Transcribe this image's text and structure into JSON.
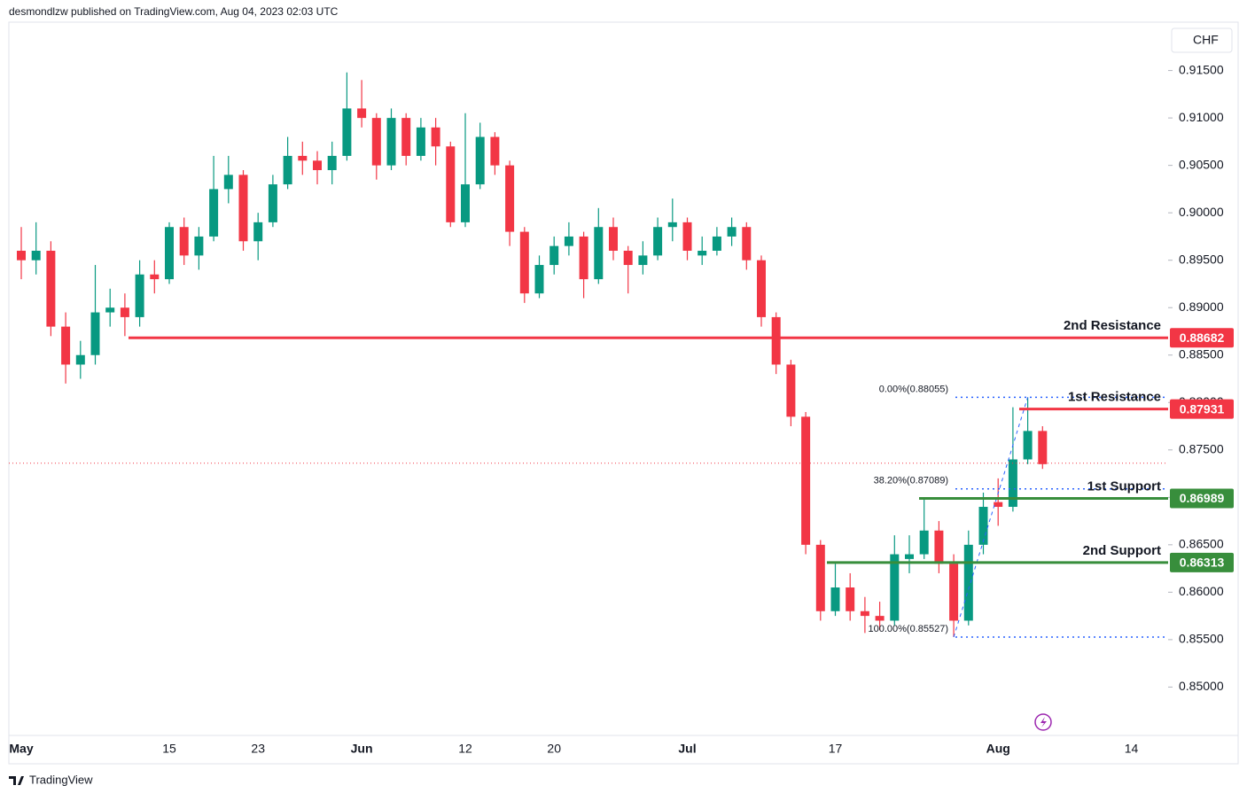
{
  "header": "desmondlzw published on TradingView.com, Aug 04, 2023 02:03 UTC",
  "currency": "CHF",
  "brand": "TradingView",
  "chart_data": {
    "type": "candlestick",
    "categories": [
      "May",
      null,
      null,
      null,
      null,
      null,
      null,
      null,
      null,
      null,
      "15",
      null,
      null,
      null,
      null,
      null,
      "23",
      null,
      null,
      null,
      null,
      null,
      null,
      "Jun",
      null,
      null,
      null,
      null,
      null,
      null,
      "12",
      null,
      null,
      null,
      null,
      null,
      "20",
      null,
      null,
      null,
      null,
      null,
      null,
      null,
      null,
      "Jul",
      null,
      null,
      null,
      null,
      null,
      null,
      null,
      null,
      null,
      "17",
      null,
      null,
      null,
      null,
      null,
      null,
      null,
      null,
      null,
      null,
      "Aug",
      null,
      null,
      null,
      null,
      null,
      null,
      null,
      null,
      "14"
    ],
    "open": [
      0.896,
      0.895,
      0.896,
      0.888,
      0.884,
      0.885,
      0.8895,
      0.89,
      0.889,
      0.8935,
      0.893,
      0.8985,
      0.8955,
      0.8975,
      0.9025,
      0.904,
      0.897,
      0.899,
      0.903,
      0.906,
      0.9055,
      0.9045,
      0.906,
      0.911,
      0.91,
      0.905,
      0.91,
      0.906,
      0.909,
      0.907,
      0.899,
      0.903,
      0.908,
      0.905,
      0.898,
      0.8915,
      0.8945,
      0.8965,
      0.8975,
      0.893,
      0.8985,
      0.896,
      0.8945,
      0.8955,
      0.8985,
      0.899,
      0.8955,
      0.896,
      0.8975,
      0.8985,
      0.895,
      0.889,
      0.884,
      0.8785,
      0.865,
      0.858,
      0.8605,
      0.858,
      0.8575,
      0.857,
      0.8635,
      0.864,
      0.8665,
      0.863,
      0.857,
      0.865,
      0.8695,
      0.869,
      0.874,
      0.877,
      null,
      null,
      null,
      null,
      null,
      null
    ],
    "high": [
      0.8985,
      0.899,
      0.897,
      0.8895,
      0.8865,
      0.8945,
      0.892,
      0.8915,
      0.895,
      0.895,
      0.899,
      0.8995,
      0.8985,
      0.906,
      0.906,
      0.9045,
      0.9,
      0.904,
      0.908,
      0.9075,
      0.9065,
      0.9075,
      0.9148,
      0.914,
      0.9105,
      0.911,
      0.9105,
      0.91,
      0.91,
      0.9075,
      0.9105,
      0.9095,
      0.9085,
      0.9055,
      0.8985,
      0.8955,
      0.8975,
      0.899,
      0.898,
      0.9005,
      0.8995,
      0.8965,
      0.897,
      0.8995,
      0.9015,
      0.8995,
      0.8975,
      0.8985,
      0.8995,
      0.899,
      0.8955,
      0.8895,
      0.8845,
      0.879,
      0.8655,
      0.863,
      0.862,
      0.8595,
      0.859,
      0.866,
      0.866,
      0.8699,
      0.8675,
      0.864,
      0.8665,
      0.8705,
      0.872,
      0.8795,
      0.88055,
      0.8775,
      null,
      null,
      null,
      null,
      null,
      null
    ],
    "low": [
      0.893,
      0.8935,
      0.887,
      0.882,
      0.8825,
      0.884,
      0.888,
      0.887,
      0.888,
      0.8915,
      0.8925,
      0.8945,
      0.894,
      0.897,
      0.901,
      0.896,
      0.895,
      0.8985,
      0.9025,
      0.904,
      0.903,
      0.903,
      0.9055,
      0.909,
      0.9035,
      0.9045,
      0.905,
      0.9055,
      0.905,
      0.8985,
      0.8985,
      0.9025,
      0.904,
      0.8965,
      0.8905,
      0.891,
      0.8935,
      0.8955,
      0.891,
      0.8925,
      0.895,
      0.8915,
      0.8935,
      0.895,
      0.897,
      0.895,
      0.8945,
      0.8955,
      0.8965,
      0.894,
      0.888,
      0.883,
      0.8775,
      0.864,
      0.857,
      0.8575,
      0.857,
      0.8557,
      0.856,
      0.8565,
      0.862,
      0.8635,
      0.862,
      0.85527,
      0.8565,
      0.864,
      0.867,
      0.8685,
      0.8735,
      0.873,
      null,
      null,
      null,
      null,
      null,
      null
    ],
    "close": [
      0.895,
      0.896,
      0.888,
      0.884,
      0.885,
      0.8895,
      0.89,
      0.889,
      0.8935,
      0.893,
      0.8985,
      0.8955,
      0.8975,
      0.9025,
      0.904,
      0.897,
      0.899,
      0.903,
      0.906,
      0.9055,
      0.9045,
      0.906,
      0.911,
      0.91,
      0.905,
      0.91,
      0.906,
      0.909,
      0.907,
      0.899,
      0.903,
      0.908,
      0.905,
      0.898,
      0.8915,
      0.8945,
      0.8965,
      0.8975,
      0.893,
      0.8985,
      0.896,
      0.8945,
      0.8955,
      0.8985,
      0.899,
      0.896,
      0.896,
      0.8975,
      0.8985,
      0.895,
      0.889,
      0.884,
      0.8785,
      0.865,
      0.858,
      0.8605,
      0.858,
      0.8575,
      0.857,
      0.864,
      0.864,
      0.8665,
      0.863,
      0.857,
      0.865,
      0.869,
      0.869,
      0.874,
      0.877,
      0.8735,
      null,
      null,
      null,
      null,
      null,
      null
    ],
    "up_color": "#089981",
    "down_color": "#f23645",
    "last_price": 0.8736,
    "ylim": [
      0.8449,
      0.9201
    ],
    "yticks": [
      {
        "value": 0.915,
        "label": "0.91500"
      },
      {
        "value": 0.91,
        "label": "0.91000"
      },
      {
        "value": 0.905,
        "label": "0.90500"
      },
      {
        "value": 0.9,
        "label": "0.90000"
      },
      {
        "value": 0.895,
        "label": "0.89500"
      },
      {
        "value": 0.89,
        "label": "0.89000"
      },
      {
        "value": 0.885,
        "label": "0.88500"
      },
      {
        "value": 0.88,
        "label": "0.88000"
      },
      {
        "value": 0.875,
        "label": "0.87500"
      },
      {
        "value": 0.87,
        "label": "0.87000"
      },
      {
        "value": 0.865,
        "label": "0.86500"
      },
      {
        "value": 0.86,
        "label": "0.86000"
      },
      {
        "value": 0.855,
        "label": "0.85500"
      },
      {
        "value": 0.85,
        "label": "0.85000"
      }
    ],
    "levels": [
      {
        "label": "2nd Resistance",
        "value": 0.88682,
        "color": "#f23645"
      },
      {
        "label": "1st Resistance",
        "value": 0.87931,
        "color": "#f23645"
      },
      {
        "label": "1st Support",
        "value": 0.86989,
        "color": "#388e3c"
      },
      {
        "label": "2nd Support",
        "value": 0.86313,
        "color": "#388e3c"
      }
    ],
    "fib": [
      {
        "label": "0.00%(0.88055)",
        "value": 0.88055
      },
      {
        "label": "38.20%(0.87089)",
        "value": 0.87089
      },
      {
        "label": "100.00%(0.85527)",
        "value": 0.85527
      }
    ],
    "fib_color": "#2962ff"
  }
}
